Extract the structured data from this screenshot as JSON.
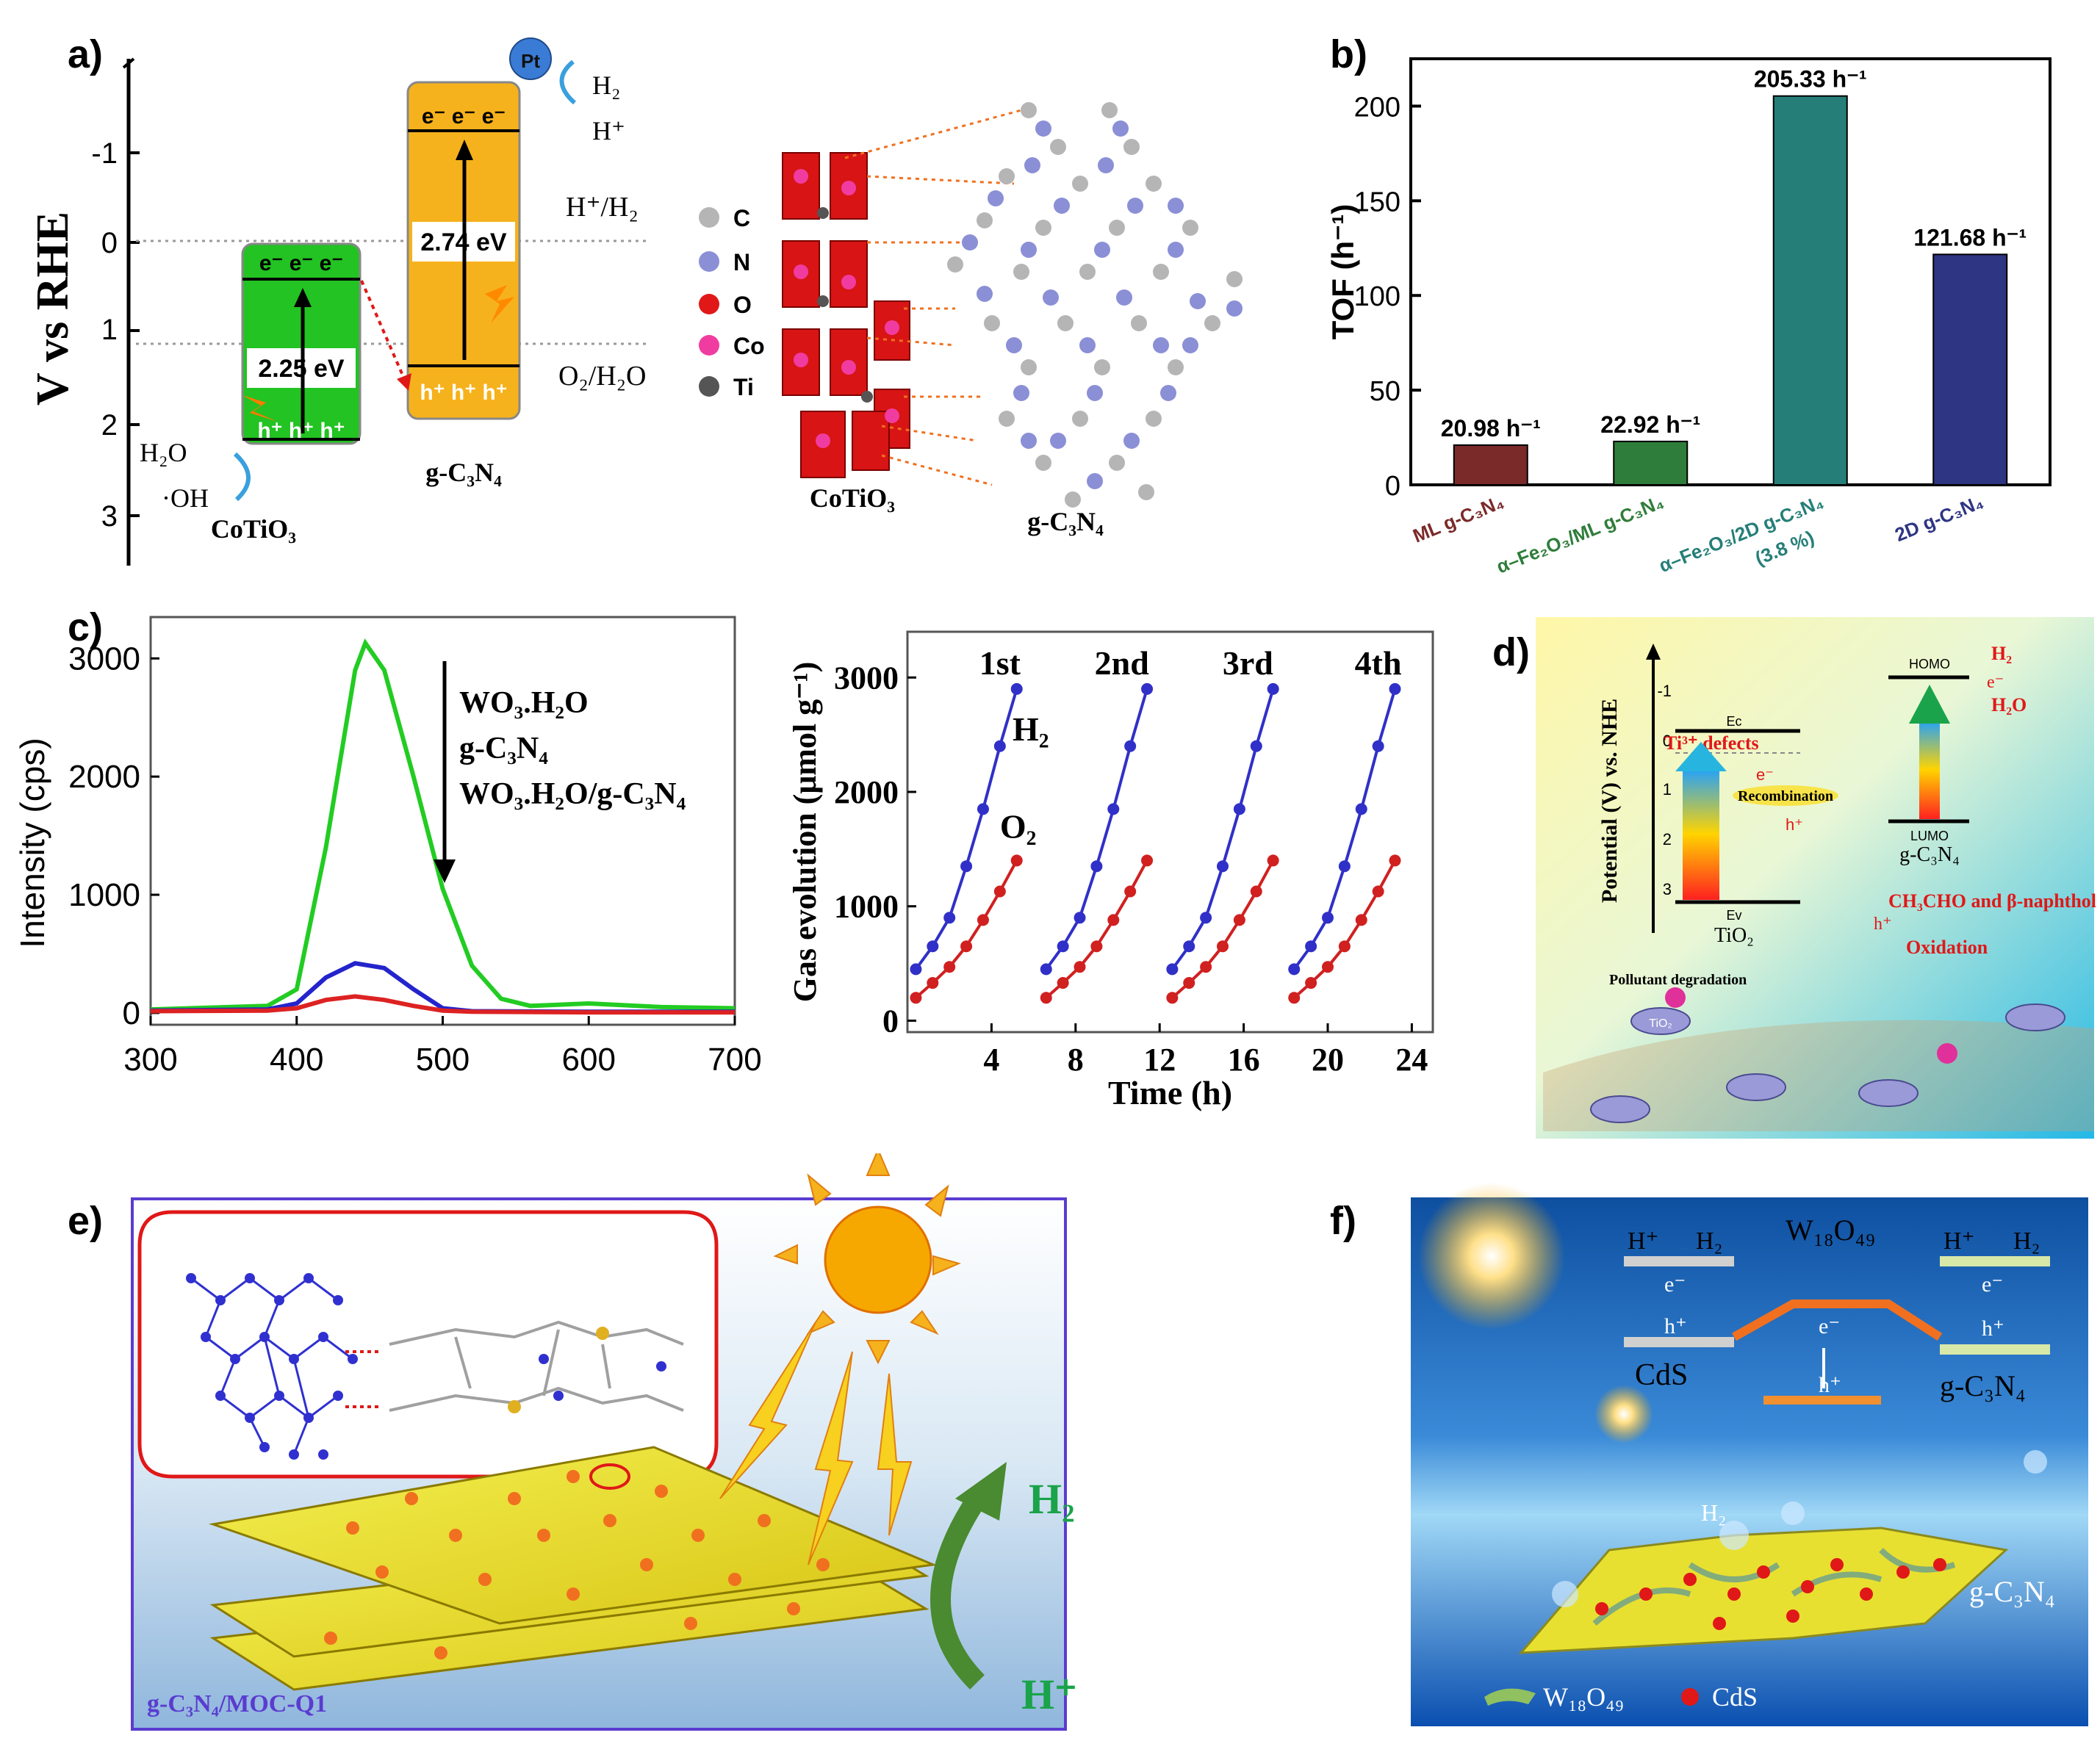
{
  "panel_a": {
    "label": "a)",
    "yaxis_label": "V vs RHE",
    "yticks": [
      "-1",
      "0",
      "1",
      "2",
      "3"
    ],
    "cotio3": {
      "cb": "e⁻ e⁻ e⁻",
      "vb": "h⁺ h⁺ h⁺",
      "gap": "2.25 eV",
      "name": "CoTiO₃",
      "h2o": "H₂O",
      "oh": "·OH"
    },
    "gcn": {
      "cb": "e⁻ e⁻ e⁻",
      "vb": "h⁺ h⁺ h⁺",
      "gap": "2.74 eV",
      "name": "g-C₃N₄",
      "pt": "Pt",
      "h2": "H₂",
      "hplus": "H⁺"
    },
    "redox1": "H⁺/H₂",
    "redox2": "O₂/H₂O",
    "legend": [
      {
        "label": "C",
        "color": "#b5b5b5"
      },
      {
        "label": "N",
        "color": "#8a8fd6"
      },
      {
        "label": "O",
        "color": "#e01818"
      },
      {
        "label": "Co",
        "color": "#f03ca0"
      },
      {
        "label": "Ti",
        "color": "#555555"
      }
    ],
    "struct_left": "CoTiO₃",
    "struct_right": "g-C₃N₄"
  },
  "panel_b": {
    "label": "b)",
    "chart_data": {
      "type": "bar",
      "ylabel": "TOF (h⁻¹)",
      "ylim": [
        0,
        225
      ],
      "yticks": [
        0,
        50,
        100,
        150,
        200
      ],
      "categories": [
        "ML g-C₃N₄",
        "α–Fe₂O₃/ML g-C₃N₄",
        "α–Fe₂O₃/2D g-C₃N₄",
        "2D g-C₃N₄"
      ],
      "cat_note": [
        "",
        "",
        "(3.8 %)",
        ""
      ],
      "values": [
        20.98,
        22.92,
        205.33,
        121.68
      ],
      "value_labels": [
        "20.98 h⁻¹",
        "22.92 h⁻¹",
        "205.33 h⁻¹",
        "121.68 h⁻¹"
      ],
      "colors": [
        "#7b2a2a",
        "#2f7d3a",
        "#257f78",
        "#2e3582"
      ]
    }
  },
  "panel_c": {
    "label": "c)",
    "pl": {
      "chart_data": {
        "type": "line",
        "xlabel": "",
        "ylabel": "Intensity (cps)",
        "xlim": [
          300,
          700
        ],
        "ylim": [
          -100,
          3350
        ],
        "xticks": [
          300,
          400,
          500,
          600,
          700
        ],
        "yticks": [
          0,
          1000,
          2000,
          3000
        ],
        "legend": [
          "WO₃.H₂O",
          "g-C₃N₄",
          "WO₃.H₂O/g-C₃N₄"
        ],
        "series": [
          {
            "name": "g-C3N4 (green)",
            "color": "#22cc22",
            "x": [
              300,
              380,
              400,
              420,
              440,
              447,
              460,
              480,
              500,
              520,
              540,
              560,
              600,
              650,
              700
            ],
            "y": [
              30,
              60,
              200,
              1400,
              2900,
              3130,
              2900,
              2000,
              1050,
              400,
              120,
              60,
              80,
              50,
              40
            ]
          },
          {
            "name": "blue",
            "color": "#2424cc",
            "x": [
              300,
              380,
              400,
              420,
              440,
              460,
              480,
              500,
              520,
              600,
              700
            ],
            "y": [
              20,
              30,
              80,
              300,
              420,
              380,
              200,
              40,
              15,
              10,
              10
            ]
          },
          {
            "name": "red",
            "color": "#dd2222",
            "x": [
              300,
              380,
              400,
              420,
              440,
              460,
              480,
              500,
              520,
              600,
              700
            ],
            "y": [
              15,
              20,
              40,
              110,
              140,
              110,
              60,
              20,
              10,
              5,
              5
            ]
          }
        ]
      }
    },
    "gas": {
      "chart_data": {
        "type": "line",
        "xlabel": "Time (h)",
        "ylabel": "Gas evolution (μmol g⁻¹)",
        "xlim": [
          0,
          25
        ],
        "ylim": [
          -100,
          3400
        ],
        "xticks": [
          4,
          8,
          12,
          16,
          20,
          24
        ],
        "yticks": [
          0,
          1000,
          2000,
          3000
        ],
        "cycle_labels": [
          "1st",
          "2nd",
          "3rd",
          "4th"
        ],
        "series_labels": [
          "H₂",
          "O₂"
        ],
        "series": [
          {
            "name": "H2",
            "color": "#3030c8",
            "cycles": [
              [
                [
                  0.4,
                  450
                ],
                [
                  1.2,
                  650
                ],
                [
                  2,
                  900
                ],
                [
                  2.8,
                  1350
                ],
                [
                  3.6,
                  1850
                ],
                [
                  4.4,
                  2400
                ],
                [
                  5.2,
                  2900
                ]
              ],
              [
                [
                  6.6,
                  450
                ],
                [
                  7.4,
                  650
                ],
                [
                  8.2,
                  900
                ],
                [
                  9,
                  1350
                ],
                [
                  9.8,
                  1850
                ],
                [
                  10.6,
                  2400
                ],
                [
                  11.4,
                  2900
                ]
              ],
              [
                [
                  12.6,
                  450
                ],
                [
                  13.4,
                  650
                ],
                [
                  14.2,
                  900
                ],
                [
                  15,
                  1350
                ],
                [
                  15.8,
                  1850
                ],
                [
                  16.6,
                  2400
                ],
                [
                  17.4,
                  2900
                ]
              ],
              [
                [
                  18.4,
                  450
                ],
                [
                  19.2,
                  650
                ],
                [
                  20,
                  900
                ],
                [
                  20.8,
                  1350
                ],
                [
                  21.6,
                  1850
                ],
                [
                  22.4,
                  2400
                ],
                [
                  23.2,
                  2900
                ]
              ]
            ]
          },
          {
            "name": "O2",
            "color": "#d02020",
            "cycles": [
              [
                [
                  0.4,
                  200
                ],
                [
                  1.2,
                  330
                ],
                [
                  2,
                  470
                ],
                [
                  2.8,
                  650
                ],
                [
                  3.6,
                  880
                ],
                [
                  4.4,
                  1130
                ],
                [
                  5.2,
                  1400
                ]
              ],
              [
                [
                  6.6,
                  200
                ],
                [
                  7.4,
                  330
                ],
                [
                  8.2,
                  470
                ],
                [
                  9,
                  650
                ],
                [
                  9.8,
                  880
                ],
                [
                  10.6,
                  1130
                ],
                [
                  11.4,
                  1400
                ]
              ],
              [
                [
                  12.6,
                  200
                ],
                [
                  13.4,
                  330
                ],
                [
                  14.2,
                  470
                ],
                [
                  15,
                  650
                ],
                [
                  15.8,
                  880
                ],
                [
                  16.6,
                  1130
                ],
                [
                  17.4,
                  1400
                ]
              ],
              [
                [
                  18.4,
                  200
                ],
                [
                  19.2,
                  330
                ],
                [
                  20,
                  470
                ],
                [
                  20.8,
                  650
                ],
                [
                  21.6,
                  880
                ],
                [
                  22.4,
                  1130
                ],
                [
                  23.2,
                  1400
                ]
              ]
            ]
          }
        ]
      }
    }
  },
  "panel_d": {
    "label": "d)",
    "yaxis": "Potential (V) vs. NHE",
    "yticks": [
      "-1",
      "0",
      "1",
      "2",
      "3"
    ],
    "ec": "Eᴄ",
    "ev": "Eᴠ",
    "tio2": "TiO₂",
    "defects": "Ti³⁺ defects",
    "e": "e⁻",
    "h": "h⁺",
    "recombination": "Recombination",
    "homo": "HOMO",
    "lumo": "LUMO",
    "gcn": "g-C₃N₄",
    "h2": "H₂",
    "h2o": "H₂O",
    "pollutant": "CH₃CHO and β-naphthol",
    "oxidation": "Oxidation",
    "degradation": "Pollutant degradation",
    "tio2_particle": "TiO₂"
  },
  "panel_e": {
    "label": "e)",
    "h2": "H₂",
    "hplus": "H⁺",
    "caption": "g-C₃N₄/MOC-Q1"
  },
  "panel_f": {
    "label": "f)",
    "hplus": "H⁺",
    "h2": "H₂",
    "e": "e⁻",
    "h": "h⁺",
    "cds": "CdS",
    "w18": "W₁₈O₄₉",
    "gcn": "g-C₃N₄",
    "h2_bubble": "H₂",
    "legend_w18": "W₁₈O₄₉",
    "legend_cds": "CdS"
  }
}
